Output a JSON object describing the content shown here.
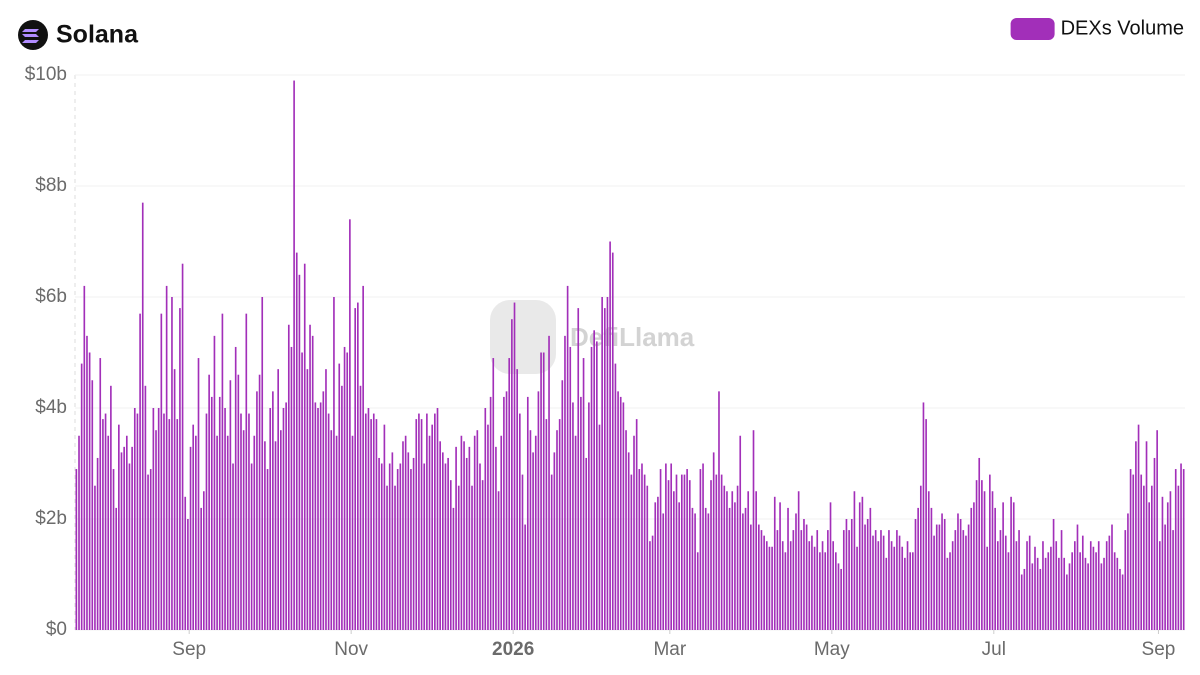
{
  "chart_data": {
    "type": "bar",
    "title": "Solana",
    "watermark": "DefiLlama",
    "legend_position": "top-right",
    "grid": true,
    "series": [
      {
        "name": "DEXs Volume",
        "color": "#a22fb9",
        "values": [
          2.9,
          3.5,
          4.8,
          6.2,
          5.3,
          5.0,
          4.5,
          2.6,
          3.1,
          4.9,
          3.8,
          3.9,
          3.5,
          4.4,
          2.9,
          2.2,
          3.7,
          3.2,
          3.3,
          3.5,
          3.0,
          3.3,
          4.0,
          3.9,
          5.7,
          7.7,
          4.4,
          2.8,
          2.9,
          4.0,
          3.6,
          4.0,
          5.7,
          3.9,
          6.2,
          3.8,
          6.0,
          4.7,
          3.8,
          5.8,
          6.6,
          2.4,
          2.0,
          3.3,
          3.7,
          3.5,
          4.9,
          2.2,
          2.5,
          3.9,
          4.6,
          4.2,
          5.3,
          3.5,
          4.2,
          5.7,
          4.0,
          3.5,
          4.5,
          3.0,
          5.1,
          4.6,
          3.9,
          3.6,
          5.7,
          3.9,
          3.0,
          3.5,
          4.3,
          4.6,
          6.0,
          3.4,
          2.9,
          4.0,
          4.3,
          3.4,
          4.7,
          3.6,
          4.0,
          4.1,
          5.5,
          5.1,
          9.9,
          6.8,
          6.4,
          5.0,
          6.6,
          4.7,
          5.5,
          5.3,
          4.1,
          4.0,
          4.1,
          4.3,
          4.7,
          3.9,
          3.6,
          6.0,
          3.5,
          4.8,
          4.4,
          5.1,
          5.0,
          7.4,
          3.5,
          5.8,
          5.9,
          4.4,
          6.2,
          3.9,
          4.0,
          3.8,
          3.9,
          3.8,
          3.1,
          3.0,
          3.7,
          2.6,
          3.0,
          3.2,
          2.6,
          2.9,
          3.0,
          3.4,
          3.5,
          3.2,
          2.9,
          3.1,
          3.8,
          3.9,
          3.8,
          3.0,
          3.9,
          3.5,
          3.7,
          3.9,
          4.0,
          3.4,
          3.2,
          3.0,
          3.1,
          2.7,
          2.2,
          3.3,
          2.6,
          3.5,
          3.4,
          3.1,
          3.3,
          2.6,
          3.5,
          3.6,
          3.0,
          2.7,
          4.0,
          3.7,
          4.2,
          4.9,
          3.3,
          2.5,
          3.5,
          4.2,
          4.3,
          4.9,
          5.6,
          5.9,
          4.7,
          3.9,
          2.8,
          1.9,
          4.2,
          3.6,
          3.2,
          3.5,
          4.3,
          5.0,
          5.0,
          3.8,
          5.3,
          2.8,
          3.2,
          3.6,
          3.8,
          4.5,
          5.3,
          6.2,
          5.1,
          4.1,
          3.5,
          5.8,
          4.2,
          4.9,
          3.1,
          4.1,
          5.1,
          5.4,
          5.2,
          3.7,
          6.0,
          5.8,
          6.0,
          7.0,
          6.8,
          4.8,
          4.3,
          4.2,
          4.1,
          3.6,
          3.2,
          2.8,
          3.5,
          3.8,
          2.9,
          3.0,
          2.8,
          2.6,
          1.6,
          1.7,
          2.3,
          2.4,
          2.9,
          2.1,
          3.0,
          2.7,
          3.0,
          2.5,
          2.8,
          2.3,
          2.8,
          2.8,
          2.9,
          2.7,
          2.2,
          2.1,
          1.4,
          2.9,
          3.0,
          2.2,
          2.1,
          2.7,
          3.2,
          2.8,
          4.3,
          2.8,
          2.6,
          2.5,
          2.2,
          2.5,
          2.3,
          2.6,
          3.5,
          2.1,
          2.2,
          2.5,
          1.9,
          3.6,
          2.5,
          1.9,
          1.8,
          1.7,
          1.6,
          1.5,
          1.5,
          2.4,
          1.8,
          2.3,
          1.6,
          1.4,
          2.2,
          1.6,
          1.8,
          2.1,
          2.5,
          1.8,
          2.0,
          1.9,
          1.6,
          1.7,
          1.5,
          1.8,
          1.4,
          1.6,
          1.4,
          1.8,
          2.3,
          1.6,
          1.4,
          1.2,
          1.1,
          1.8,
          2.0,
          1.8,
          2.0,
          2.5,
          1.5,
          2.3,
          2.4,
          1.9,
          2.0,
          2.2,
          1.7,
          1.8,
          1.6,
          1.8,
          1.7,
          1.3,
          1.8,
          1.6,
          1.5,
          1.8,
          1.7,
          1.5,
          1.3,
          1.6,
          1.4,
          1.4,
          2.0,
          2.2,
          2.6,
          4.1,
          3.8,
          2.5,
          2.2,
          1.7,
          1.9,
          1.9,
          2.1,
          2.0,
          1.3,
          1.4,
          1.6,
          1.8,
          2.1,
          2.0,
          1.8,
          1.7,
          1.9,
          2.2,
          2.3,
          2.7,
          3.1,
          2.7,
          2.5,
          1.5,
          2.8,
          2.5,
          2.2,
          1.6,
          1.8,
          2.3,
          1.7,
          1.4,
          2.4,
          2.3,
          1.6,
          1.8,
          1.0,
          1.1,
          1.6,
          1.7,
          1.2,
          1.5,
          1.3,
          1.1,
          1.6,
          1.3,
          1.4,
          1.5,
          2.0,
          1.6,
          1.3,
          1.8,
          1.3,
          1.0,
          1.2,
          1.4,
          1.6,
          1.9,
          1.4,
          1.7,
          1.3,
          1.2,
          1.6,
          1.5,
          1.4,
          1.6,
          1.2,
          1.3,
          1.6,
          1.7,
          1.9,
          1.4,
          1.3,
          1.1,
          1.0,
          1.8,
          2.1,
          2.9,
          2.8,
          3.4,
          3.7,
          2.8,
          2.6,
          3.4,
          2.3,
          2.6,
          3.1,
          3.6,
          1.6,
          2.4,
          1.9,
          2.3,
          2.5,
          1.8,
          2.9,
          2.6,
          3.0,
          2.9
        ]
      }
    ],
    "xlim": [
      0,
      418
    ],
    "xticks": [
      {
        "value": 43,
        "label": "Sep"
      },
      {
        "value": 104,
        "label": "Nov"
      },
      {
        "value": 165,
        "label": "2026"
      },
      {
        "value": 224,
        "label": "Mar"
      },
      {
        "value": 285,
        "label": "May"
      },
      {
        "value": 346,
        "label": "Jul"
      },
      {
        "value": 408,
        "label": "Sep"
      }
    ],
    "ylim": [
      0,
      10
    ],
    "yticks": [
      {
        "value": 0,
        "label": "$0"
      },
      {
        "value": 2,
        "label": "$2b"
      },
      {
        "value": 4,
        "label": "$4b"
      },
      {
        "value": 6,
        "label": "$6b"
      },
      {
        "value": 8,
        "label": "$8b"
      },
      {
        "value": 10,
        "label": "$10b"
      }
    ]
  }
}
